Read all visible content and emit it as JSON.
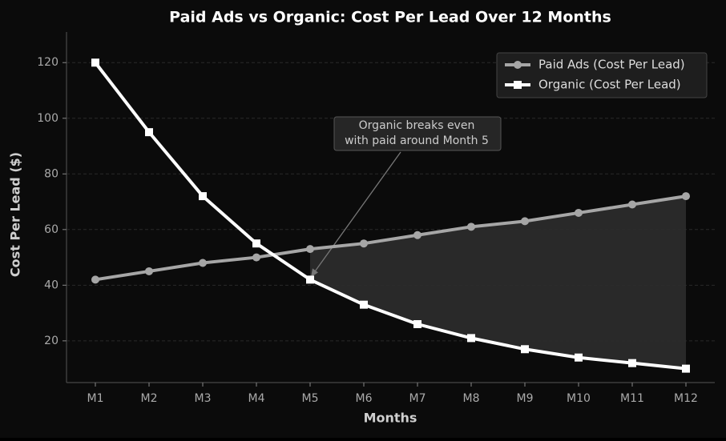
{
  "chart_data": {
    "type": "line",
    "title": "Paid Ads vs Organic: Cost Per Lead Over 12 Months",
    "xlabel": "Months",
    "ylabel": "Cost Per Lead ($)",
    "categories": [
      "M1",
      "M2",
      "M3",
      "M4",
      "M5",
      "M6",
      "M7",
      "M8",
      "M9",
      "M10",
      "M11",
      "M12"
    ],
    "series": [
      {
        "name": "Paid Ads (Cost Per Lead)",
        "color": "#a6a6a6",
        "marker": "circle",
        "values": [
          42,
          45,
          48,
          50,
          53,
          55,
          58,
          61,
          63,
          66,
          69,
          72
        ]
      },
      {
        "name": "Organic (Cost Per Lead)",
        "color": "#ffffff",
        "marker": "square",
        "values": [
          120,
          95,
          72,
          55,
          42,
          33,
          26,
          21,
          17,
          14,
          12,
          10
        ]
      }
    ],
    "ylim": [
      5,
      131
    ],
    "yticks": [
      20,
      40,
      60,
      80,
      100,
      120
    ],
    "grid": true,
    "legend": "upper right",
    "annotation": [
      "Organic breaks even",
      "with paid around Month 5"
    ]
  }
}
